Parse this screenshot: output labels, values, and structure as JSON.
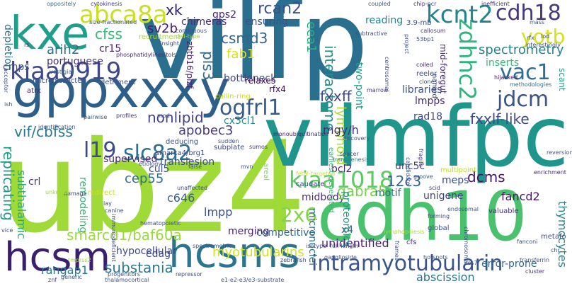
{
  "words": [
    {
      "t": "vilfp",
      "c": "#2a6f8e"
    },
    {
      "t": "ubz4",
      "c": "#a0da39"
    },
    {
      "t": "vilmfpc",
      "c": "#1f958b"
    },
    {
      "t": "cdh10",
      "c": "#4ac16d"
    },
    {
      "t": "gppxxxy",
      "c": "#2c5f8a"
    },
    {
      "t": "hcsms",
      "c": "#2b768e"
    },
    {
      "t": "hcsm",
      "c": "#3b1f6e"
    },
    {
      "t": "kxe",
      "c": "#1f9e89"
    },
    {
      "t": "kiaa0919",
      "c": "#3f4889"
    },
    {
      "t": "abca8a",
      "c": "#c8e020"
    },
    {
      "t": "kcnt2",
      "c": "#25838e"
    },
    {
      "t": "cdh18",
      "c": "#453781"
    },
    {
      "t": "yotb",
      "c": "#d2e21b"
    },
    {
      "t": "vac1",
      "c": "#2e6e8e"
    },
    {
      "t": "jdcm",
      "c": "#3a548c"
    },
    {
      "t": "zdhhc2",
      "c": "#2fb47c"
    },
    {
      "t": "ogfrl1",
      "c": "#375a8c"
    },
    {
      "t": "kiaa1018",
      "c": "#5ec962"
    },
    {
      "t": "slc8a2",
      "c": "#2c718e"
    },
    {
      "t": "intramyotubularin",
      "c": "#39558c"
    },
    {
      "t": "2x6",
      "c": "#84d44b"
    },
    {
      "t": "l19",
      "c": "#3e4a89"
    },
    {
      "t": "rcan2",
      "c": "#3b528b"
    },
    {
      "t": "xk",
      "c": "#2d1f6e"
    },
    {
      "t": "sv2b",
      "c": "#481a6c"
    },
    {
      "t": "gps2",
      "c": "#482475"
    },
    {
      "t": "csmd3",
      "c": "#34618d"
    },
    {
      "t": "cfss",
      "c": "#3aba76"
    },
    {
      "t": "arih2",
      "c": "#2e6f8e"
    },
    {
      "t": "portuguese",
      "c": "#46337e"
    },
    {
      "t": "cr15",
      "c": "#482173"
    },
    {
      "t": "fab1",
      "c": "#d8e219"
    },
    {
      "t": "pls3",
      "c": "#31688e"
    },
    {
      "t": "eea1",
      "c": "#2ab07f"
    },
    {
      "t": "interactome",
      "c": "#21918c"
    },
    {
      "t": "lymphoid",
      "c": "#addc30"
    },
    {
      "t": "fxxff",
      "c": "#3f4788"
    },
    {
      "t": "nonlipid",
      "c": "#414287"
    },
    {
      "t": "vif/cbfss",
      "c": "#2a788e"
    },
    {
      "t": "apobec3",
      "c": "#443a83"
    },
    {
      "t": "fxxlf-like",
      "c": "#3e4989"
    },
    {
      "t": "spectrometry",
      "c": "#26828e"
    },
    {
      "t": "inserts",
      "c": "#3aba76"
    },
    {
      "t": "lmpps",
      "c": "#482878"
    },
    {
      "t": "rad18",
      "c": "#404588"
    },
    {
      "t": "mgy/h",
      "c": "#472c7a"
    },
    {
      "t": "cx3cl1",
      "c": "#228b8d"
    },
    {
      "t": "libraries",
      "c": "#3d4e8a"
    },
    {
      "t": "two-point",
      "c": "#1fa088"
    },
    {
      "t": "supervised",
      "c": "#482677"
    },
    {
      "t": "cul5",
      "c": "#3b518b"
    },
    {
      "t": "translesion",
      "c": "#3e4c8a"
    },
    {
      "t": "replicating",
      "c": "#1e9c89"
    },
    {
      "t": "subthalamic",
      "c": "#27ad81"
    },
    {
      "t": "crl",
      "c": "#46337e"
    },
    {
      "t": "remodeling",
      "c": "#35b779"
    },
    {
      "t": "cep55",
      "c": "#2d708e"
    },
    {
      "t": "midbody",
      "c": "#472d7b"
    },
    {
      "t": "gabra5",
      "c": "#7ad151"
    },
    {
      "t": "12c3",
      "c": "#33638d"
    },
    {
      "t": "dcms",
      "c": "#471365"
    },
    {
      "t": "meps",
      "c": "#3d4d8a"
    },
    {
      "t": "unc5c",
      "c": "#414287"
    },
    {
      "t": "bcl2",
      "c": "#482878"
    },
    {
      "t": "motif",
      "c": "#2c738e"
    },
    {
      "t": "c646",
      "c": "#365d8d"
    },
    {
      "t": "lmpp",
      "c": "#3c4f8a"
    },
    {
      "t": "merging",
      "c": "#481f70"
    },
    {
      "t": "competitive",
      "c": "#33638d"
    },
    {
      "t": "smarcd1/baf60a",
      "c": "#9bd93c"
    },
    {
      "t": "edag",
      "c": "#414487"
    },
    {
      "t": "substania",
      "c": "#2a788e"
    },
    {
      "t": "myotubularins",
      "c": "#d5e21a"
    },
    {
      "t": "unidentified",
      "c": "#481b6d"
    },
    {
      "t": "rangap1",
      "c": "#2a788e"
    },
    {
      "t": "hypocellular",
      "c": "#3e4989"
    },
    {
      "t": "abscission",
      "c": "#2c738e"
    },
    {
      "t": "error-prone",
      "c": "#31688e"
    },
    {
      "t": "unigene",
      "c": "#424086"
    },
    {
      "t": "fancd2",
      "c": "#471365"
    },
    {
      "t": "thymocytes",
      "c": "#25848e"
    },
    {
      "t": "proteomics",
      "c": "#1f9a8a"
    },
    {
      "t": "micronuclei",
      "c": "#2c728e"
    },
    {
      "t": "x4",
      "c": "#355f8d"
    },
    {
      "t": "bottleneck",
      "c": "#3f4889"
    },
    {
      "t": "ensuring",
      "c": "#3b528b"
    },
    {
      "t": "chimeras",
      "c": "#472d7b"
    },
    {
      "t": "reading",
      "c": "#25848e"
    },
    {
      "t": "rfx4",
      "c": "#440154"
    },
    {
      "t": "zbtb16/plzf",
      "c": "#482475"
    },
    {
      "t": "cmps",
      "c": "#3b528b"
    },
    {
      "t": "depletion",
      "c": "#2d708e"
    },
    {
      "t": "mid-foregut",
      "c": "#472c7a"
    },
    {
      "t": "scant",
      "c": "#20a386"
    },
    {
      "t": "named",
      "c": "#404688"
    },
    {
      "t": "relaxes",
      "c": "#440154"
    },
    {
      "t": "recruitment",
      "c": "#a8db34"
    },
    {
      "t": "size-fractionated",
      "c": "#3b528b"
    },
    {
      "t": "cytokinesis",
      "c": "#453781"
    },
    {
      "t": "insight",
      "c": "#3e4989"
    },
    {
      "t": "phosphatidylinositols",
      "c": "#472c7a"
    },
    {
      "t": "vestigial",
      "c": "#31688e"
    },
    {
      "t": "microdissected",
      "c": "#3b528b"
    },
    {
      "t": "atrx",
      "c": "#482475"
    },
    {
      "t": "detriment",
      "c": "#3b528b"
    },
    {
      "t": "oppositely",
      "c": "#2c728e"
    },
    {
      "t": "coupled",
      "c": "#3b528b"
    },
    {
      "t": "chip-pcr",
      "c": "#46327e"
    },
    {
      "t": "inefficient",
      "c": "#46327e"
    },
    {
      "t": "3.9-mb",
      "c": "#3b528b"
    },
    {
      "t": "callosum",
      "c": "#46327e"
    },
    {
      "t": "subtractive",
      "c": "#3e4a89"
    },
    {
      "t": "contiguous",
      "c": "#3e4c8a"
    },
    {
      "t": "cell-type",
      "c": "#a0da39"
    },
    {
      "t": "reeler",
      "c": "#3b528b"
    },
    {
      "t": "coiled",
      "c": "#482475"
    },
    {
      "t": "clones",
      "c": "#3b528b"
    },
    {
      "t": "marrow",
      "c": "#46337e"
    },
    {
      "t": "centrosomal",
      "c": "#3e4989"
    },
    {
      "t": "project",
      "c": "#3b528b"
    },
    {
      "t": "interestingly",
      "c": "#3e4a89"
    },
    {
      "t": "methodologies",
      "c": "#2e6e8e"
    },
    {
      "t": "hijacked",
      "c": "#471365"
    },
    {
      "t": "cullin-ring",
      "c": "#c8e020"
    },
    {
      "t": "monoubiquitination",
      "c": "#482475"
    },
    {
      "t": "earliest-generated",
      "c": "#3aba76"
    },
    {
      "t": "discovery",
      "c": "#3b528b"
    },
    {
      "t": "spacer",
      "c": "#3e4a89"
    },
    {
      "t": "transgenesis",
      "c": "#25848e"
    },
    {
      "t": "deducing",
      "c": "#3b528b"
    },
    {
      "t": "subplate",
      "c": "#3e4989"
    },
    {
      "t": "sumos",
      "c": "#46327e"
    },
    {
      "t": "sudden",
      "c": "#3b528b"
    },
    {
      "t": "smarca4/brg1",
      "c": "#3e4989"
    },
    {
      "t": "etiology",
      "c": "#3b528b"
    },
    {
      "t": "areal",
      "c": "#7ad151"
    },
    {
      "t": "fragile",
      "c": "#46327e"
    },
    {
      "t": "candidate",
      "c": "#3b528b"
    },
    {
      "t": "multipoint",
      "c": "#bddf26"
    },
    {
      "t": "endosomal",
      "c": "#3b528b"
    },
    {
      "t": "forming",
      "c": "#3e4989"
    },
    {
      "t": "valuable",
      "c": "#46327e"
    },
    {
      "t": "enrichment",
      "c": "#482475"
    },
    {
      "t": "reversion",
      "c": "#3b528b"
    },
    {
      "t": "groove",
      "c": "#3b528b"
    },
    {
      "t": "scid",
      "c": "#46327e"
    },
    {
      "t": "lymphopoiesis",
      "c": "#a8db34"
    },
    {
      "t": "caudate",
      "c": "#3e4989"
    },
    {
      "t": "full-length",
      "c": "#3b528b"
    },
    {
      "t": "fetal-targeted",
      "c": "#c8e020"
    },
    {
      "t": "unaffected",
      "c": "#3b528b"
    },
    {
      "t": "hematopoietic",
      "c": "#3b528b"
    },
    {
      "t": "immunodeficient",
      "c": "#3e4989"
    },
    {
      "t": "canine",
      "c": "#3b528b"
    },
    {
      "t": "lay",
      "c": "#3e4989"
    },
    {
      "t": "redirect",
      "c": "#c8e020"
    },
    {
      "t": "damage",
      "c": "#3e4989"
    },
    {
      "t": "unknown",
      "c": "#a0da39"
    },
    {
      "t": "ish",
      "c": "#3b528b"
    },
    {
      "t": "acceptor",
      "c": "#3b528b"
    },
    {
      "t": "rs",
      "c": "#46327e"
    },
    {
      "t": "pairwise",
      "c": "#3b528b"
    },
    {
      "t": "mod",
      "c": "#3e4989"
    },
    {
      "t": "profiles",
      "c": "#46327e"
    },
    {
      "t": "identification",
      "c": "#3b528b"
    },
    {
      "t": "false",
      "c": "#3b528b"
    },
    {
      "t": "vice",
      "c": "#3e4989"
    },
    {
      "t": "spectrometric",
      "c": "#3b528b"
    },
    {
      "t": "isotype",
      "c": "#3b528b"
    },
    {
      "t": "zebrafish",
      "c": "#3e4989"
    },
    {
      "t": "ganglioside",
      "c": "#3b528b"
    },
    {
      "t": "frames",
      "c": "#3b528b"
    },
    {
      "t": "cfs",
      "c": "#46327e"
    },
    {
      "t": "hotspots",
      "c": "#3b528b"
    },
    {
      "t": "cos7",
      "c": "#3e4989"
    },
    {
      "t": "chromosomal",
      "c": "#3b528b"
    },
    {
      "t": "global",
      "c": "#3b528b"
    },
    {
      "t": "transferrin",
      "c": "#3b528b"
    },
    {
      "t": "cluster",
      "c": "#46327e"
    },
    {
      "t": "metafo",
      "c": "#3e4989"
    },
    {
      "t": "chr",
      "c": "#3b528b"
    },
    {
      "t": "fanconi",
      "c": "#3b528b"
    },
    {
      "t": "e1-e2-e3/e3-substrate",
      "c": "#3b528b"
    },
    {
      "t": "thalamocortical",
      "c": "#3b528b"
    },
    {
      "t": "repressor",
      "c": "#3e4989"
    },
    {
      "t": "progenitors",
      "c": "#3b528b"
    },
    {
      "t": "generic",
      "c": "#3b528b"
    },
    {
      "t": "znf",
      "c": "#3e4989"
    },
    {
      "t": "tmprss2",
      "c": "#a0da39"
    },
    {
      "t": "rfx",
      "c": "#3b528b"
    },
    {
      "t": "lod",
      "c": "#3e4989"
    },
    {
      "t": "mass",
      "c": "#3b528b"
    },
    {
      "t": "53bp1",
      "c": "#3b528b"
    },
    {
      "t": "mvn",
      "c": "#3b528b"
    }
  ]
}
